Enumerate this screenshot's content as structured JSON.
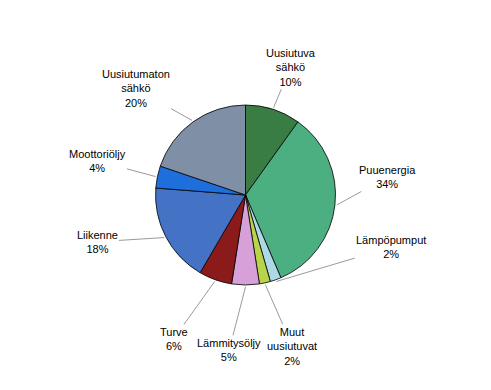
{
  "chart_data": {
    "type": "pie",
    "categories": [
      "Uusiutuva\nsähkö",
      "Puuenergia",
      "Lämpöpumput",
      "Muut\nuusiutuvat",
      "Lämmitysöljy",
      "Turve",
      "Liikenne",
      "Moottoriöljy",
      "Uusiutumaton\nsähkö"
    ],
    "values": [
      10,
      34,
      2,
      2,
      5,
      6,
      18,
      4,
      20
    ],
    "value_labels": [
      "10%",
      "34%",
      "2%",
      "2%",
      "5%",
      "6%",
      "18%",
      "4%",
      "20%"
    ],
    "colors": [
      "#3a7d44",
      "#4caf82",
      "#add8e6",
      "#b8d44a",
      "#d8a0d8",
      "#8b1a1a",
      "#4472c4",
      "#1e6fdb",
      "#7f8fa6"
    ],
    "data_labels": true
  }
}
